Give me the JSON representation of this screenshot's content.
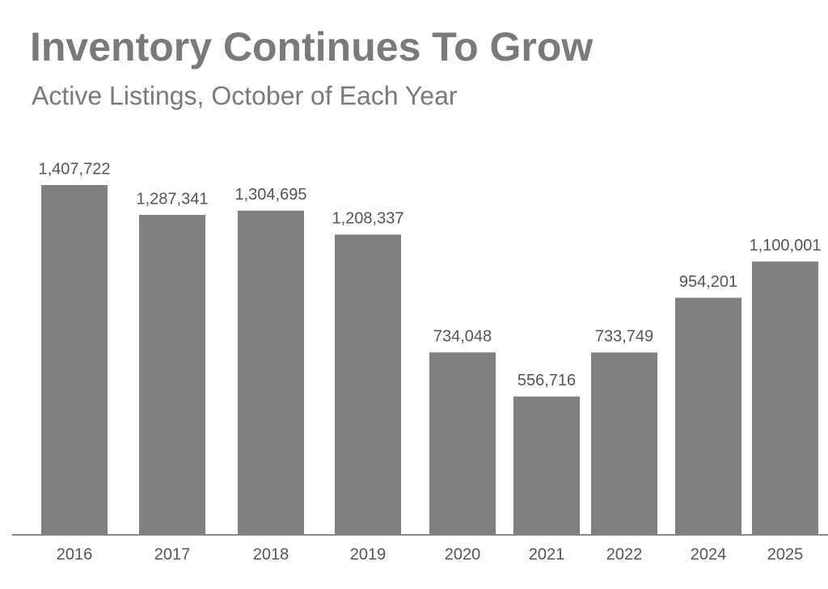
{
  "chart_data": {
    "type": "bar",
    "title": "Inventory Continues To Grow",
    "subtitle": "Active Listings, October of Each Year",
    "categories": [
      "2016",
      "2017",
      "2018",
      "2019",
      "2020",
      "2021",
      "2022",
      "2024",
      "2025"
    ],
    "values": [
      1407722,
      1287341,
      1304695,
      1208337,
      734048,
      556716,
      733749,
      954201,
      1100001
    ],
    "value_labels": [
      "1,407,722",
      "1,287,341",
      "1,304,695",
      "1,208,337",
      "734,048",
      "556,716",
      "733,749",
      "954,201",
      "1,100,001"
    ],
    "color": "#808080"
  }
}
